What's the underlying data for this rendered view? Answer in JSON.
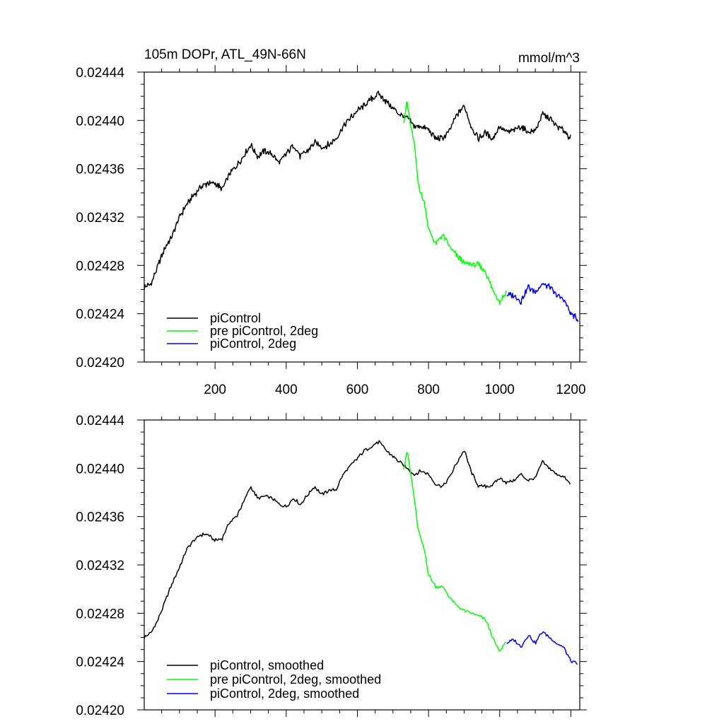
{
  "figure": {
    "title_left": "105m DOPr, ATL_49N-66N",
    "title_right": "mmol/m^3"
  },
  "chart_data": [
    {
      "type": "line",
      "title": "105m DOPr, ATL_49N-66N",
      "units": "mmol/m^3",
      "xlim": [
        1,
        1225
      ],
      "ylim": [
        0.0242,
        0.02444
      ],
      "x_ticks": [
        200,
        400,
        600,
        800,
        1000,
        1200
      ],
      "x_tick_labels": [
        "200",
        "400",
        "600",
        "800",
        "1000",
        "1200"
      ],
      "y_ticks": [
        0.0242,
        0.02424,
        0.02428,
        0.02432,
        0.02436,
        0.0244,
        0.02444
      ],
      "y_tick_labels": [
        "0.02420",
        "0.02424",
        "0.02428",
        "0.02432",
        "0.02436",
        "0.02440",
        "0.02444"
      ],
      "legend_position": "bottom-left",
      "grid": false,
      "series": [
        {
          "name": "piControl",
          "color": "#000000",
          "x": [
            1,
            20,
            40,
            60,
            80,
            100,
            120,
            140,
            160,
            180,
            200,
            220,
            240,
            260,
            280,
            300,
            320,
            340,
            360,
            380,
            400,
            420,
            440,
            460,
            480,
            500,
            520,
            540,
            560,
            580,
            600,
            620,
            640,
            660,
            680,
            700,
            720,
            740,
            760,
            780,
            800,
            820,
            840,
            860,
            880,
            900,
            920,
            940,
            960,
            980,
            1000,
            1020,
            1040,
            1060,
            1080,
            1100,
            1120,
            1140,
            1160,
            1180,
            1200
          ],
          "y": [
            0.024262,
            0.024265,
            0.02428,
            0.024295,
            0.024305,
            0.02432,
            0.02433,
            0.024338,
            0.024345,
            0.024348,
            0.024348,
            0.024343,
            0.024355,
            0.024362,
            0.02437,
            0.02438,
            0.02437,
            0.024375,
            0.024372,
            0.024365,
            0.024372,
            0.02438,
            0.02437,
            0.024375,
            0.024382,
            0.024378,
            0.02438,
            0.024385,
            0.024395,
            0.024402,
            0.024408,
            0.024412,
            0.024418,
            0.024422,
            0.024416,
            0.02441,
            0.024405,
            0.024402,
            0.024395,
            0.024395,
            0.024392,
            0.024385,
            0.024385,
            0.024392,
            0.024405,
            0.024412,
            0.024395,
            0.024385,
            0.02439,
            0.024385,
            0.024395,
            0.02439,
            0.024392,
            0.024395,
            0.02439,
            0.024392,
            0.024405,
            0.024402,
            0.024395,
            0.024392,
            0.024385
          ]
        },
        {
          "name": "pre piControl, 2deg",
          "color": "#00ff00",
          "x": [
            730,
            740,
            750,
            760,
            770,
            780,
            790,
            800,
            820,
            840,
            860,
            880,
            900,
            920,
            940,
            960,
            980,
            1000,
            1020
          ],
          "y": [
            0.0244,
            0.024415,
            0.024395,
            0.02438,
            0.02435,
            0.024338,
            0.02433,
            0.02431,
            0.024298,
            0.024305,
            0.024295,
            0.024288,
            0.024282,
            0.024281,
            0.02428,
            0.024275,
            0.02426,
            0.02425,
            0.024258
          ]
        },
        {
          "name": "piControl, 2deg",
          "color": "#0000ff",
          "x": [
            1020,
            1040,
            1060,
            1080,
            1100,
            1120,
            1140,
            1160,
            1180,
            1200,
            1220
          ],
          "y": [
            0.024255,
            0.024255,
            0.02425,
            0.024262,
            0.024258,
            0.024265,
            0.024262,
            0.024255,
            0.024252,
            0.02424,
            0.024235
          ]
        }
      ]
    },
    {
      "type": "line",
      "xlim": [
        1,
        1225
      ],
      "ylim": [
        0.0242,
        0.02444
      ],
      "y_ticks": [
        0.0242,
        0.02424,
        0.02428,
        0.02432,
        0.02436,
        0.0244,
        0.02444
      ],
      "y_tick_labels": [
        "0.02420",
        "0.02424",
        "0.02428",
        "0.02432",
        "0.02436",
        "0.02440",
        "0.02444"
      ],
      "x_tick_labels": [],
      "legend_position": "bottom-left",
      "grid": false,
      "series": [
        {
          "name": "piControl, smoothed",
          "color": "#000000",
          "x": [
            1,
            20,
            40,
            60,
            80,
            100,
            120,
            140,
            160,
            180,
            200,
            220,
            240,
            260,
            280,
            300,
            320,
            340,
            360,
            380,
            400,
            420,
            440,
            460,
            480,
            500,
            520,
            540,
            560,
            580,
            600,
            620,
            640,
            660,
            680,
            700,
            720,
            740,
            760,
            780,
            800,
            820,
            840,
            860,
            880,
            900,
            920,
            940,
            960,
            980,
            1000,
            1020,
            1040,
            1060,
            1080,
            1100,
            1120,
            1140,
            1160,
            1180,
            1200
          ],
          "y": [
            0.02426,
            0.024264,
            0.024275,
            0.02429,
            0.024305,
            0.024318,
            0.024333,
            0.02434,
            0.024345,
            0.024345,
            0.02434,
            0.024342,
            0.024355,
            0.02436,
            0.024372,
            0.024385,
            0.024375,
            0.024377,
            0.024375,
            0.02437,
            0.024368,
            0.024375,
            0.02437,
            0.024378,
            0.024385,
            0.024378,
            0.024382,
            0.024382,
            0.024395,
            0.024402,
            0.024408,
            0.024415,
            0.024418,
            0.024422,
            0.024415,
            0.02441,
            0.024405,
            0.0244,
            0.024395,
            0.024398,
            0.024395,
            0.024387,
            0.024385,
            0.024393,
            0.024405,
            0.024415,
            0.024397,
            0.024385,
            0.024385,
            0.024386,
            0.024392,
            0.024388,
            0.02439,
            0.024395,
            0.02439,
            0.024392,
            0.024405,
            0.0244,
            0.024395,
            0.024393,
            0.024386
          ]
        },
        {
          "name": "pre piControl, 2deg, smoothed",
          "color": "#00ff00",
          "x": [
            730,
            740,
            750,
            760,
            770,
            780,
            790,
            800,
            820,
            840,
            860,
            880,
            900,
            920,
            940,
            960,
            980,
            1000,
            1020
          ],
          "y": [
            0.0244,
            0.024415,
            0.024395,
            0.024375,
            0.02435,
            0.02434,
            0.02433,
            0.024312,
            0.024302,
            0.024302,
            0.024293,
            0.024286,
            0.024282,
            0.02428,
            0.024278,
            0.024275,
            0.02426,
            0.024248,
            0.024258
          ]
        },
        {
          "name": "piControl, 2deg, smoothed",
          "color": "#0000ff",
          "x": [
            1020,
            1040,
            1060,
            1080,
            1100,
            1120,
            1140,
            1160,
            1180,
            1200,
            1220
          ],
          "y": [
            0.024255,
            0.024258,
            0.024252,
            0.024262,
            0.024255,
            0.024265,
            0.02426,
            0.024255,
            0.024252,
            0.02424,
            0.024238
          ]
        }
      ]
    }
  ]
}
